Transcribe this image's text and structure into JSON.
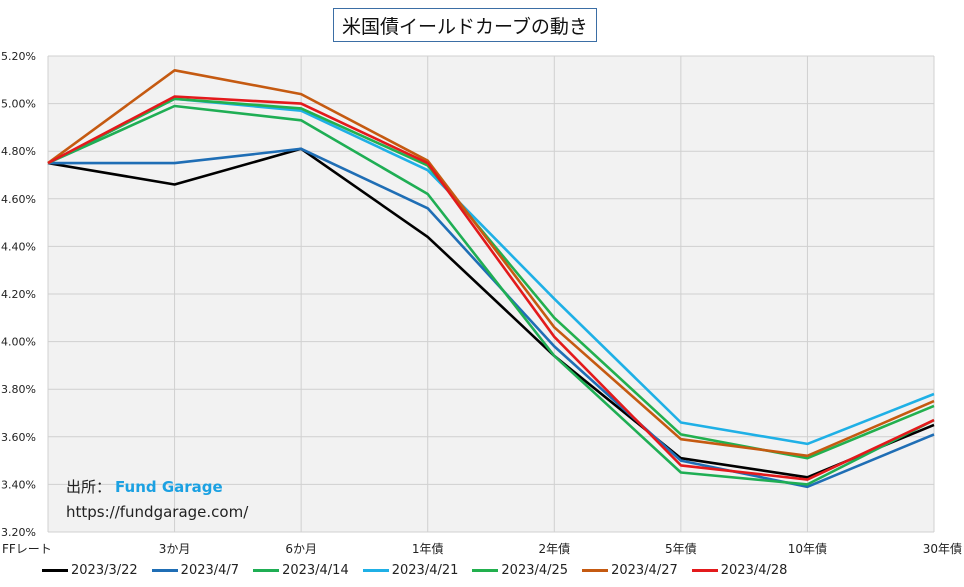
{
  "chart_data": {
    "type": "line",
    "title": "米国債イールドカーブの動き",
    "categories": [
      "FFレート",
      "3か月",
      "6か月",
      "1年債",
      "2年債",
      "5年債",
      "10年債",
      "30年債"
    ],
    "yticks": [
      "3.20%",
      "3.40%",
      "3.60%",
      "3.80%",
      "4.00%",
      "4.20%",
      "4.40%",
      "4.60%",
      "4.80%",
      "5.00%",
      "5.20%"
    ],
    "ylim": [
      3.2,
      5.2
    ],
    "grid": true,
    "legend": "bottom",
    "series": [
      {
        "name": "2023/3/22",
        "color": "#000000",
        "values": [
          4.75,
          4.66,
          4.81,
          4.44,
          3.94,
          3.51,
          3.43,
          3.65
        ]
      },
      {
        "name": "2023/4/7",
        "color": "#1f6eb5",
        "values": [
          4.75,
          4.75,
          4.81,
          4.56,
          3.98,
          3.5,
          3.39,
          3.61
        ]
      },
      {
        "name": "2023/4/14",
        "color": "#1fae54",
        "values": [
          4.75,
          4.99,
          4.93,
          4.62,
          3.94,
          3.45,
          3.4,
          3.67
        ]
      },
      {
        "name": "2023/4/21",
        "color": "#1fb0e6",
        "values": [
          4.75,
          5.02,
          4.97,
          4.72,
          4.18,
          3.66,
          3.57,
          3.78
        ]
      },
      {
        "name": "2023/4/25",
        "color": "#22b04e",
        "values": [
          4.75,
          5.02,
          4.98,
          4.74,
          4.1,
          3.61,
          3.51,
          3.73
        ]
      },
      {
        "name": "2023/4/27",
        "color": "#c55a11",
        "values": [
          4.75,
          5.14,
          5.04,
          4.76,
          4.06,
          3.59,
          3.52,
          3.75
        ]
      },
      {
        "name": "2023/4/28",
        "color": "#e31a1c",
        "values": [
          4.75,
          5.03,
          5.0,
          4.75,
          4.02,
          3.48,
          3.42,
          3.67
        ]
      }
    ]
  },
  "source": {
    "label": "出所：",
    "brand": "Fund Garage",
    "url": "https://fundgarage.com/"
  }
}
